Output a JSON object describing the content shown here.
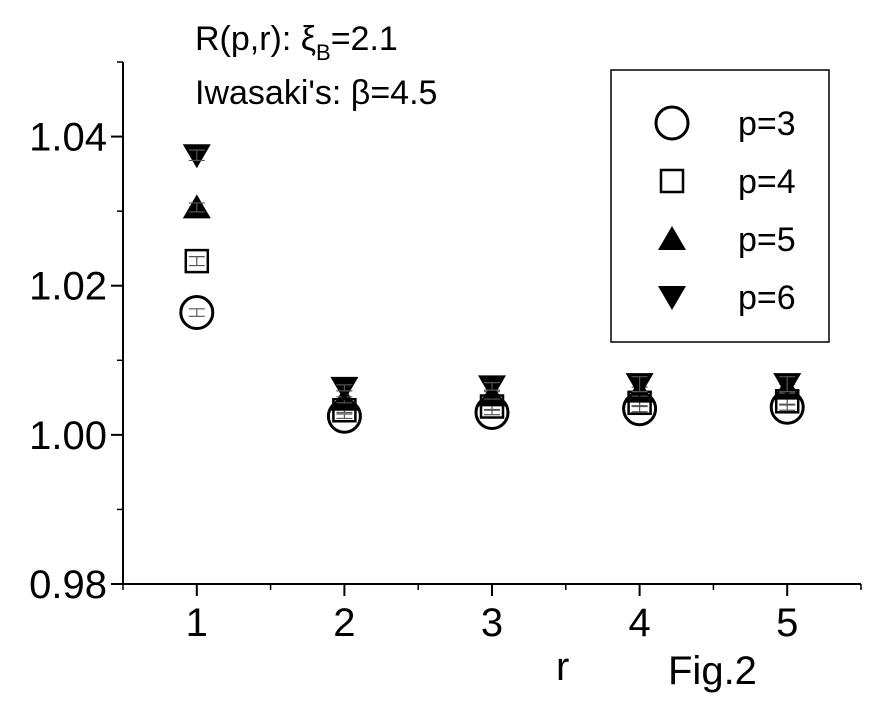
{
  "chart_data": {
    "type": "scatter",
    "title": "",
    "xlabel": "r",
    "ylabel": "",
    "x": [
      1,
      2,
      3,
      4,
      5
    ],
    "xlim": [
      0.5,
      5.5
    ],
    "ylim": [
      0.98,
      1.05
    ],
    "xticks": [
      "1",
      "2",
      "3",
      "4",
      "5"
    ],
    "yticks": [
      "0.98",
      "1.00",
      "1.02",
      "1.04"
    ],
    "annotations": {
      "line1_main": "R(p,r): ξ",
      "line1_sub": "B",
      "line1_tail": "=2.1",
      "line2": "Iwasaki's: β=4.5",
      "figure_label": "Fig.2"
    },
    "legend_position": "top-right",
    "series": [
      {
        "name": "p=3",
        "marker": "open-circle",
        "values": [
          1.0164,
          1.0025,
          1.003,
          1.0035,
          1.0037
        ],
        "errors": [
          0.0005,
          0.0003,
          0.0003,
          0.0004,
          0.0004
        ]
      },
      {
        "name": "p=4",
        "marker": "open-square",
        "values": [
          1.0233,
          1.0033,
          1.0038,
          1.0043,
          1.0045
        ],
        "errors": [
          0.0006,
          0.0003,
          0.0004,
          0.0005,
          0.0005
        ]
      },
      {
        "name": "p=5",
        "marker": "filled-triangle-up",
        "values": [
          1.0305,
          1.0047,
          1.0053,
          1.0058,
          1.0062
        ],
        "errors": [
          0.0006,
          0.0004,
          0.0005,
          0.0006,
          0.0006
        ]
      },
      {
        "name": "p=6",
        "marker": "filled-triangle-down",
        "values": [
          1.0375,
          1.0063,
          1.0065,
          1.0068,
          1.0068
        ],
        "errors": [
          0.0007,
          0.0004,
          0.0005,
          0.001,
          0.001
        ]
      }
    ]
  }
}
